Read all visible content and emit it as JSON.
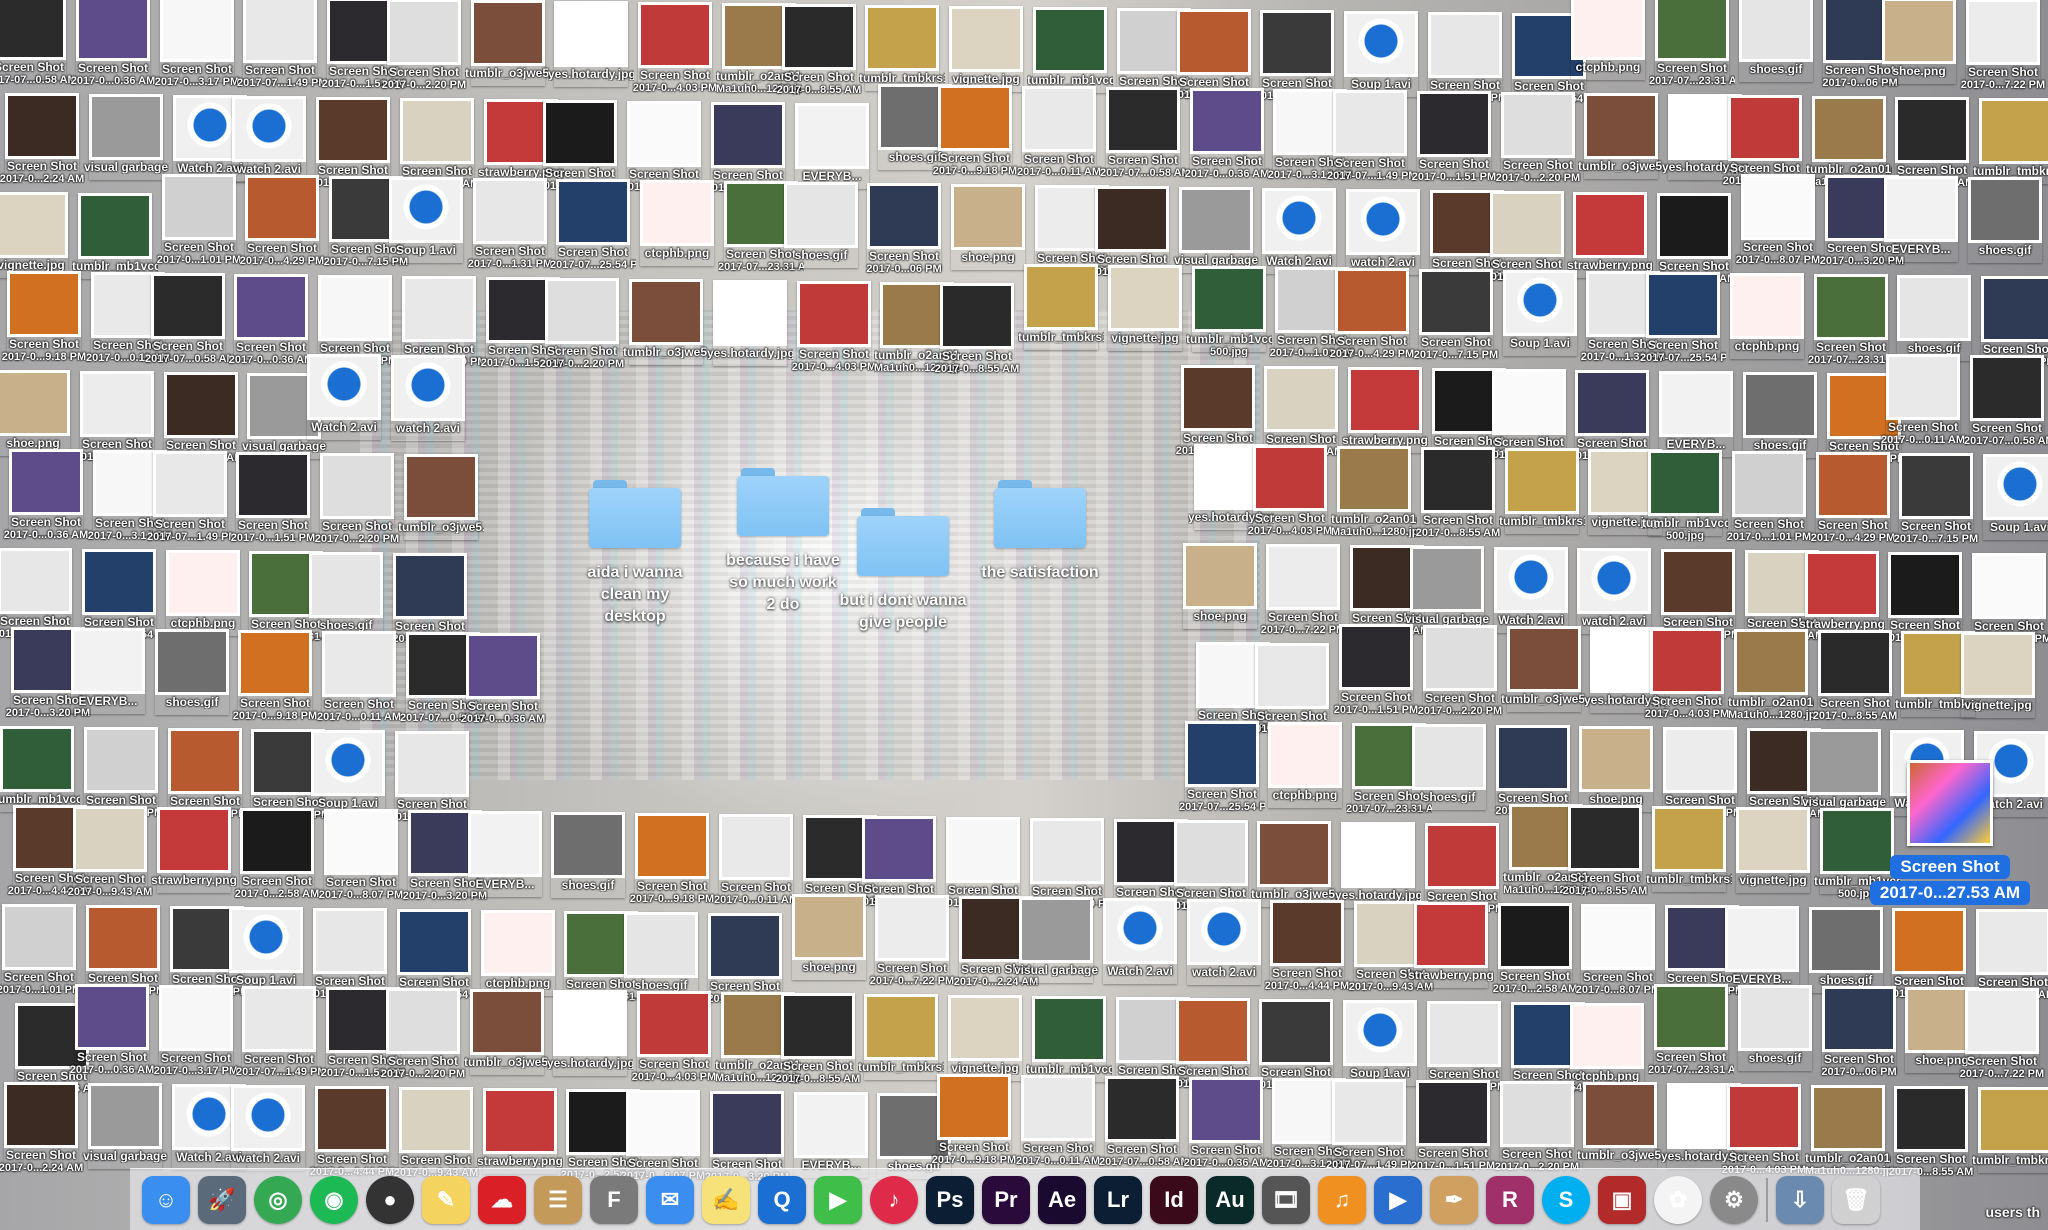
{
  "desktop": {
    "folders": [
      {
        "name": "aida i wanna clean my desktop"
      },
      {
        "name": "because i have so much work 2 do"
      },
      {
        "name": "but i dont wanna give people"
      },
      {
        "name": "the satisfaction"
      }
    ],
    "selected_item": {
      "line1": "Screen Shot",
      "line2": "2017-0...27.53 AM"
    },
    "icons": [
      {
        "line1": "Screen Shot",
        "line2": "2017-07...0.58 AM",
        "color": "#2b2b2b"
      },
      {
        "line1": "Screen Shot",
        "line2": "2017-0...0.36 AM",
        "color": "#5e4b8a"
      },
      {
        "line1": "Screen Shot",
        "line2": "2017-0...3.17 PM",
        "color": "#f7f7f7"
      },
      {
        "line1": "Screen Shot",
        "line2": "2017-07...1.49 PM",
        "color": "#e8e8e8"
      },
      {
        "line1": "Screen Shot",
        "line2": "2017-0...1.51 PM",
        "color": "#2d2a2f"
      },
      {
        "line1": "Screen Shot",
        "line2": "2017-0...2.20 PM",
        "color": "#dedede"
      },
      {
        "line1": "tumblr_o3jwe5...",
        "line2": "",
        "color": "#7a4e3a"
      },
      {
        "line1": "yes.hotardy.jpg",
        "line2": "",
        "color": "#ffffff"
      },
      {
        "line1": "Screen Shot",
        "line2": "2017-0...4.03 PM",
        "color": "#c03a3a"
      },
      {
        "line1": "tumblr_o2an01cH...",
        "line2": "Ma1uh0...1280.jpg",
        "color": "#9a7a4b"
      },
      {
        "line1": "Screen Shot",
        "line2": "2017-0...8.55 AM",
        "color": "#2a2a2a"
      },
      {
        "line1": "tumblr_tmbkrs1...",
        "line2": "",
        "color": "#c4a24c"
      },
      {
        "line1": "vignette.jpg",
        "line2": "",
        "color": "#dcd3c0"
      },
      {
        "line1": "tumblr_mb1vcq",
        "line2": "500.jpg",
        "color": "#2f5e38"
      },
      {
        "line1": "Screen Shot",
        "line2": "2017-0...1.01 PM",
        "color": "#d0d0d0"
      },
      {
        "line1": "Screen Shot",
        "line2": "2017-0...4.29 PM",
        "color": "#b85a2f"
      },
      {
        "line1": "Screen Shot",
        "line2": "2017-0...7.15 PM",
        "color": "#3a3a3a"
      },
      {
        "line1": "Soup 1.avi",
        "line2": "",
        "color": "#1b6fd3"
      },
      {
        "line1": "Screen Shot",
        "line2": "2017-0...1.31 PM",
        "color": "#e7e7e7"
      },
      {
        "line1": "Screen Shot",
        "line2": "2017-07...25.54 PM",
        "color": "#23406b"
      },
      {
        "line1": "ctcphb.png",
        "line2": "",
        "color": "#fff0f0"
      },
      {
        "line1": "Screen Shot",
        "line2": "2017-07...23.31 AM",
        "color": "#4a6f3a"
      },
      {
        "line1": "shoes.gif",
        "line2": "",
        "color": "#e5e5e5"
      },
      {
        "line1": "Screen Shot",
        "line2": "2017-0...06 PM",
        "color": "#2f3b55"
      },
      {
        "line1": "shoe.png",
        "line2": "",
        "color": "#c7b08a"
      },
      {
        "line1": "Screen Shot",
        "line2": "2017-0...7.22 PM",
        "color": "#ececec"
      },
      {
        "line1": "Screen Shot",
        "line2": "2017-0...2.24 AM",
        "color": "#3b2b23"
      },
      {
        "line1": "visual garbage",
        "line2": "",
        "color": "#9a9a9a"
      },
      {
        "line1": "Watch 2.avi",
        "line2": "",
        "color": "#1b6fd3"
      },
      {
        "line1": "watch 2.avi",
        "line2": "",
        "color": "#1b6fd3"
      },
      {
        "line1": "Screen Shot",
        "line2": "2017-0...4.44 PM",
        "color": "#5a3a2a"
      },
      {
        "line1": "Screen Shot",
        "line2": "2017-0...9.43 AM",
        "color": "#d9d2c1"
      },
      {
        "line1": "strawberry.png",
        "line2": "",
        "color": "#c43a3a"
      },
      {
        "line1": "Screen Shot",
        "line2": "2017-0...2.58 AM",
        "color": "#1b1b1b"
      },
      {
        "line1": "Screen Shot",
        "line2": "2017-0...8.07 PM",
        "color": "#fafafa"
      },
      {
        "line1": "Screen Shot",
        "line2": "2017-0...3.20 PM",
        "color": "#3a3a5a"
      },
      {
        "line1": "EVERYB...",
        "line2": "",
        "color": "#f2f2f2"
      },
      {
        "line1": "shoes.gif",
        "line2": "",
        "color": "#6e6e6e"
      },
      {
        "line1": "Screen Shot",
        "line2": "2017-0...9.18 PM",
        "color": "#d07020"
      },
      {
        "line1": "Screen Shot",
        "line2": "2017-0...0.11 AM",
        "color": "#e9e9e9"
      }
    ]
  },
  "dock": {
    "apps": [
      {
        "name": "Finder",
        "glyph": "☺",
        "color": "#3a8ef0"
      },
      {
        "name": "Launchpad",
        "glyph": "🚀",
        "color": "#5a6a7a"
      },
      {
        "name": "Chrome",
        "glyph": "◎",
        "color": "#34a853"
      },
      {
        "name": "Spotify",
        "glyph": "◉",
        "color": "#1db954"
      },
      {
        "name": "Steam",
        "glyph": "●",
        "color": "#333"
      },
      {
        "name": "Stickies",
        "glyph": "✎",
        "color": "#f4d35e"
      },
      {
        "name": "Creative Cloud",
        "glyph": "☁",
        "color": "#da1f26"
      },
      {
        "name": "Contacts",
        "glyph": "☰",
        "color": "#c49a5a"
      },
      {
        "name": "Font Book",
        "glyph": "F",
        "color": "#7a7a7a"
      },
      {
        "name": "Messages",
        "glyph": "✉",
        "color": "#3b8ef0"
      },
      {
        "name": "Notes",
        "glyph": "✍",
        "color": "#f7e27a"
      },
      {
        "name": "QuickTime",
        "glyph": "Q",
        "color": "#1b6fd3"
      },
      {
        "name": "FaceTime",
        "glyph": "▶",
        "color": "#3fbf4a"
      },
      {
        "name": "iTunes",
        "glyph": "♪",
        "color": "#e02a4a"
      },
      {
        "name": "Photoshop",
        "glyph": "Ps",
        "color": "#0b1e33"
      },
      {
        "name": "Premiere",
        "glyph": "Pr",
        "color": "#2a0a3a"
      },
      {
        "name": "After Effects",
        "glyph": "Ae",
        "color": "#1a0a30"
      },
      {
        "name": "Lightroom",
        "glyph": "Lr",
        "color": "#0b1e33"
      },
      {
        "name": "InDesign",
        "glyph": "Id",
        "color": "#3a0a1a"
      },
      {
        "name": "Audition",
        "glyph": "Au",
        "color": "#0a2a2a"
      },
      {
        "name": "Final Cut",
        "glyph": "🎞",
        "color": "#555"
      },
      {
        "name": "GarageBand",
        "glyph": "♫",
        "color": "#f09020"
      },
      {
        "name": "iMovie",
        "glyph": "▶",
        "color": "#2a6fd0"
      },
      {
        "name": "Script Editor",
        "glyph": "✒",
        "color": "#cfa060"
      },
      {
        "name": "RAR",
        "glyph": "R",
        "color": "#a0306a"
      },
      {
        "name": "Skype",
        "glyph": "S",
        "color": "#00aff0"
      },
      {
        "name": "Photo Booth",
        "glyph": "▣",
        "color": "#b22a2a"
      },
      {
        "name": "Photos",
        "glyph": "✿",
        "color": "#f4f4f4"
      },
      {
        "name": "System Preferences",
        "glyph": "⚙",
        "color": "#8a8a8a"
      },
      {
        "name": "Downloads",
        "glyph": "⇩",
        "color": "#6a8ab0"
      },
      {
        "name": "Trash",
        "glyph": "🗑",
        "color": "#d0d0d0"
      }
    ],
    "corner_label": "users th"
  },
  "colors": {
    "selection": "#1f6fe0",
    "folder": "#8fcaf7"
  }
}
